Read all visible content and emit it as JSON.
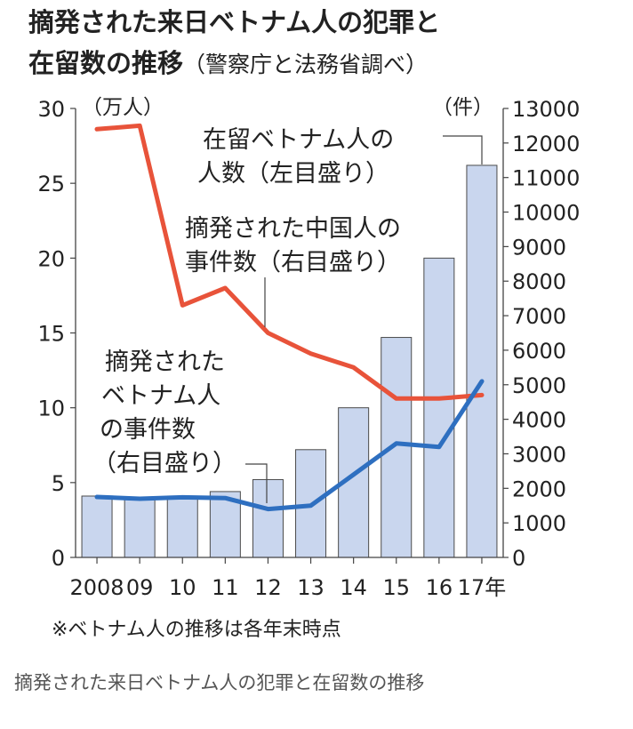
{
  "title": {
    "line1": "摘発された来日ベトナム人の犯罪と",
    "line2": "在留数の推移",
    "source": "（警察庁と法務省調べ）"
  },
  "chart_data": {
    "type": "bar+line",
    "categories": [
      "2008",
      "09",
      "10",
      "11",
      "12",
      "13",
      "14",
      "15",
      "16",
      "17年"
    ],
    "left_axis": {
      "unit_label": "（万人）",
      "ticks": [
        "30",
        "25",
        "20",
        "15",
        "10",
        "5",
        "0"
      ],
      "ylim": [
        0,
        30
      ]
    },
    "right_axis": {
      "unit_label": "（件）",
      "ticks": [
        "13000",
        "12000",
        "11000",
        "10000",
        "9000",
        "8000",
        "7000",
        "6000",
        "5000",
        "4000",
        "3000",
        "2000",
        "1000",
        "0"
      ],
      "ylim": [
        0,
        13000
      ]
    },
    "series": [
      {
        "name": "在留ベトナム人の人数（左目盛り）",
        "type": "bar",
        "axis": "left",
        "values": [
          4.1,
          4.0,
          4.1,
          4.4,
          5.2,
          7.2,
          10.0,
          14.7,
          20.0,
          26.2
        ]
      },
      {
        "name": "摘発された中国人の事件数（右目盛り）",
        "type": "line",
        "axis": "right",
        "color": "#e8533a",
        "values": [
          12400,
          12500,
          7300,
          7800,
          6500,
          5900,
          5500,
          4600,
          4600,
          4700
        ]
      },
      {
        "name": "摘発されたベトナム人の事件数（右目盛り）",
        "type": "line",
        "axis": "right",
        "color": "#2e6fc0",
        "values": [
          1750,
          1700,
          1740,
          1720,
          1400,
          1500,
          2400,
          3300,
          3200,
          5100
        ]
      }
    ],
    "annotations": {
      "bar_label": [
        "在留ベトナム人の",
        "人数（左目盛り）"
      ],
      "china_label": [
        "摘発された中国人の",
        "事件数（右目盛り）"
      ],
      "vietnam_label": [
        "摘発された",
        "ベトナム人",
        "の事件数",
        "（右目盛り）"
      ]
    },
    "note": "※ベトナム人の推移は各年末時点"
  },
  "caption": "摘発された来日ベトナム人の犯罪と在留数の推移",
  "colors": {
    "bar_fill": "#c9d6ee",
    "bar_stroke": "#4a4a4a",
    "china_line": "#e8533a",
    "vietnam_line": "#2e6fc0"
  }
}
